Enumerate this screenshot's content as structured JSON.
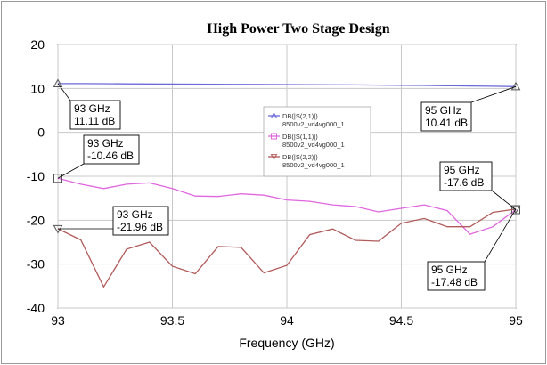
{
  "chart_data": {
    "type": "line",
    "title": "High Power Two Stage Design",
    "xlabel": "Frequency (GHz)",
    "ylabel": "",
    "xlim": [
      93,
      95
    ],
    "ylim": [
      -40,
      20
    ],
    "xticks": [
      "93",
      "93.5",
      "94",
      "94.5",
      "95"
    ],
    "yticks": [
      "20",
      "10",
      "0",
      "-10",
      "-20",
      "-30",
      "-40"
    ],
    "grid": true,
    "legend_position": "center",
    "series": [
      {
        "name": "DB(|S(2,1)|)",
        "source": "8500v2_vd4vg000_1",
        "color": "#6a6ad8",
        "marker": "triangle",
        "x": [
          93,
          93.1,
          93.2,
          93.3,
          93.4,
          93.5,
          93.6,
          93.7,
          93.8,
          93.9,
          94,
          94.1,
          94.2,
          94.3,
          94.4,
          94.5,
          94.6,
          94.7,
          94.8,
          94.9,
          95
        ],
        "y": [
          11.11,
          11.1,
          11.08,
          11.05,
          11.02,
          11.0,
          10.97,
          10.94,
          10.92,
          10.9,
          10.88,
          10.85,
          10.82,
          10.8,
          10.76,
          10.72,
          10.68,
          10.62,
          10.56,
          10.49,
          10.41
        ]
      },
      {
        "name": "DB(|S(1,1)|)",
        "source": "8500v2_vd4vg000_1",
        "color": "#e066e0",
        "marker": "square",
        "x": [
          93,
          93.1,
          93.2,
          93.3,
          93.4,
          93.5,
          93.6,
          93.7,
          93.8,
          93.9,
          94,
          94.1,
          94.2,
          94.3,
          94.4,
          94.5,
          94.6,
          94.7,
          94.8,
          94.9,
          95
        ],
        "y": [
          -10.46,
          -11.8,
          -12.8,
          -11.8,
          -11.5,
          -12.8,
          -14.5,
          -14.6,
          -14.0,
          -14.3,
          -15.4,
          -15.7,
          -16.5,
          -16.9,
          -18.1,
          -17.3,
          -16.5,
          -17.8,
          -23.2,
          -21.5,
          -17.6
        ]
      },
      {
        "name": "DB(|S(2,2)|)",
        "source": "8500v2_vd4vg000_1",
        "color": "#b05a5a",
        "marker": "triangle-down",
        "x": [
          93,
          93.1,
          93.2,
          93.3,
          93.4,
          93.5,
          93.6,
          93.7,
          93.8,
          93.9,
          94,
          94.1,
          94.2,
          94.3,
          94.4,
          94.5,
          94.6,
          94.7,
          94.8,
          94.9,
          95
        ],
        "y": [
          -21.96,
          -24.5,
          -35.2,
          -26.6,
          -25.0,
          -30.5,
          -32.2,
          -26.0,
          -26.2,
          -32.0,
          -30.3,
          -23.3,
          -22.0,
          -24.6,
          -24.8,
          -20.7,
          -19.6,
          -21.5,
          -21.5,
          -18.2,
          -17.48
        ]
      }
    ],
    "annotations": [
      {
        "freq": "93 GHz",
        "value": "11.11 dB",
        "x": 93,
        "y": 11.11
      },
      {
        "freq": "93 GHz",
        "value": "-10.46 dB",
        "x": 93,
        "y": -10.46
      },
      {
        "freq": "93 GHz",
        "value": "-21.96 dB",
        "x": 93,
        "y": -21.96
      },
      {
        "freq": "95 GHz",
        "value": "10.41 dB",
        "x": 95,
        "y": 10.41
      },
      {
        "freq": "95 GHz",
        "value": "-17.6 dB",
        "x": 95,
        "y": -17.6
      },
      {
        "freq": "95 GHz",
        "value": "-17.48 dB",
        "x": 95,
        "y": -17.48
      }
    ]
  }
}
